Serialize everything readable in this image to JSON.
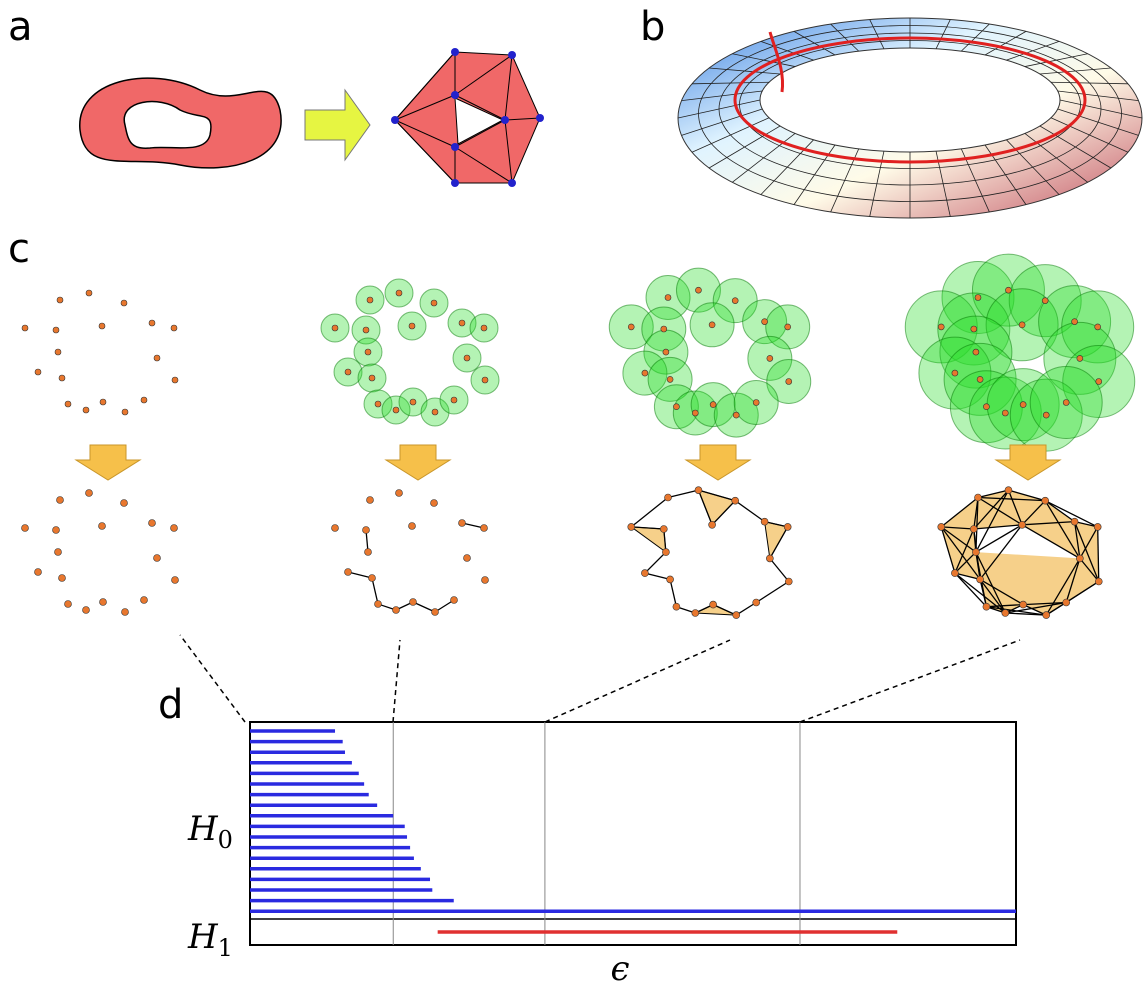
{
  "panels": {
    "a": "a",
    "b": "b",
    "c": "c",
    "d": "d"
  },
  "barcode": {
    "h0_symbol": "H",
    "h0_subscript": "0",
    "h1_symbol": "H",
    "h1_subscript": "1",
    "x_label": "ϵ",
    "h0_ends": [
      0.111,
      0.121,
      0.124,
      0.133,
      0.142,
      0.149,
      0.155,
      0.166,
      0.187,
      0.202,
      0.205,
      0.209,
      0.214,
      0.223,
      0.235,
      0.238,
      0.266,
      1.0
    ],
    "h1_bars": [
      [
        0.245,
        0.845
      ]
    ],
    "epsilon_marks": [
      0.187,
      0.385,
      0.718
    ]
  }
}
